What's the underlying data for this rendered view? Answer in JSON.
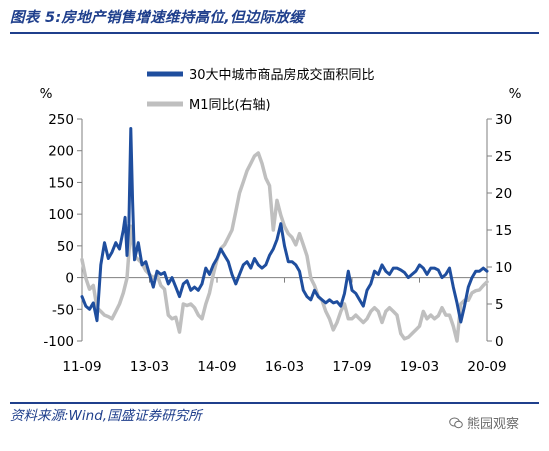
{
  "header": {
    "title": "图表 5:房地产销售增速维持高位,但边际放缓"
  },
  "footer": {
    "source": "资料来源:Wind,国盛证券研究所",
    "watermark": "熊园观察",
    "watermark_icon": "wechat-icon"
  },
  "colors": {
    "accent": "#1f3f8c",
    "series_primary": "#1f4e9e",
    "series_secondary": "#bfbfbf",
    "axis": "#7f7f7f"
  },
  "chart_data": {
    "type": "line",
    "title": "",
    "xlabel": "",
    "ylabel": "%",
    "y2label": "%",
    "ylim": [
      -100,
      250
    ],
    "y2lim": [
      0,
      30
    ],
    "yticks": [
      "250",
      "200",
      "150",
      "100",
      "50",
      "0",
      "-50",
      "-100"
    ],
    "y2ticks": [
      "30",
      "25",
      "20",
      "15",
      "10",
      "5",
      "0"
    ],
    "xticks": [
      "11-09",
      "13-03",
      "14-09",
      "16-03",
      "17-09",
      "19-03",
      "20-09"
    ],
    "xtick_positions": [
      0,
      18,
      36,
      54,
      72,
      90,
      108
    ],
    "xrange": [
      0,
      108
    ],
    "grid": false,
    "legend_position": "top",
    "series": [
      {
        "name": "30大中城市商品房成交面积同比",
        "axis": "left",
        "color": "#1f4e9e",
        "points": [
          [
            0.0,
            -30
          ],
          [
            1.0,
            -45
          ],
          [
            2.0,
            -50
          ],
          [
            3.0,
            -40
          ],
          [
            4.0,
            -68
          ],
          [
            5.0,
            20
          ],
          [
            6.0,
            55
          ],
          [
            7.0,
            30
          ],
          [
            8.0,
            40
          ],
          [
            9.0,
            55
          ],
          [
            10.0,
            45
          ],
          [
            11.0,
            75
          ],
          [
            11.5,
            95
          ],
          [
            12.0,
            35
          ],
          [
            12.5,
            85
          ],
          [
            13.0,
            235
          ],
          [
            13.5,
            120
          ],
          [
            14.0,
            28
          ],
          [
            15.0,
            55
          ],
          [
            16.0,
            20
          ],
          [
            17.0,
            25
          ],
          [
            18.0,
            5
          ],
          [
            19.0,
            -15
          ],
          [
            20.0,
            10
          ],
          [
            21.0,
            5
          ],
          [
            22.0,
            8
          ],
          [
            23.0,
            -10
          ],
          [
            24.0,
            0
          ],
          [
            25.0,
            -15
          ],
          [
            26.0,
            -30
          ],
          [
            27.0,
            -10
          ],
          [
            28.0,
            -5
          ],
          [
            29.0,
            -20
          ],
          [
            30.0,
            -15
          ],
          [
            31.0,
            -20
          ],
          [
            32.0,
            -10
          ],
          [
            33.0,
            15
          ],
          [
            34.0,
            5
          ],
          [
            35.0,
            20
          ],
          [
            36.0,
            30
          ],
          [
            37.0,
            45
          ],
          [
            38.0,
            35
          ],
          [
            39.0,
            25
          ],
          [
            40.0,
            5
          ],
          [
            41.0,
            -10
          ],
          [
            42.0,
            5
          ],
          [
            43.0,
            20
          ],
          [
            44.0,
            25
          ],
          [
            45.0,
            15
          ],
          [
            46.0,
            30
          ],
          [
            47.0,
            20
          ],
          [
            48.0,
            15
          ],
          [
            49.0,
            20
          ],
          [
            50.0,
            35
          ],
          [
            51.0,
            45
          ],
          [
            52.0,
            60
          ],
          [
            53.0,
            85
          ],
          [
            54.0,
            50
          ],
          [
            55.0,
            25
          ],
          [
            56.0,
            25
          ],
          [
            57.0,
            20
          ],
          [
            58.0,
            10
          ],
          [
            59.0,
            -20
          ],
          [
            60.0,
            -30
          ],
          [
            61.0,
            -35
          ],
          [
            62.0,
            -20
          ],
          [
            63.0,
            -30
          ],
          [
            64.0,
            -35
          ],
          [
            65.0,
            -40
          ],
          [
            66.0,
            -35
          ],
          [
            67.0,
            -40
          ],
          [
            68.0,
            -38
          ],
          [
            69.0,
            -45
          ],
          [
            70.0,
            -25
          ],
          [
            71.0,
            10
          ],
          [
            72.0,
            -20
          ],
          [
            73.0,
            -25
          ],
          [
            74.0,
            -35
          ],
          [
            75.0,
            -45
          ],
          [
            76.0,
            -20
          ],
          [
            77.0,
            -10
          ],
          [
            78.0,
            10
          ],
          [
            79.0,
            5
          ],
          [
            80.0,
            20
          ],
          [
            81.0,
            10
          ],
          [
            82.0,
            5
          ],
          [
            83.0,
            15
          ],
          [
            84.0,
            15
          ],
          [
            85.0,
            12
          ],
          [
            86.0,
            8
          ],
          [
            87.0,
            0
          ],
          [
            88.0,
            5
          ],
          [
            89.0,
            10
          ],
          [
            90.0,
            20
          ],
          [
            91.0,
            15
          ],
          [
            92.0,
            5
          ],
          [
            93.0,
            15
          ],
          [
            94.0,
            15
          ],
          [
            95.0,
            12
          ],
          [
            96.0,
            0
          ],
          [
            97.0,
            5
          ],
          [
            98.0,
            15
          ],
          [
            99.0,
            -15
          ],
          [
            100.0,
            -40
          ],
          [
            101.0,
            -70
          ],
          [
            102.0,
            -45
          ],
          [
            103.0,
            -15
          ],
          [
            104.0,
            0
          ],
          [
            105.0,
            10
          ],
          [
            106.0,
            10
          ],
          [
            107.0,
            15
          ],
          [
            108.0,
            10
          ]
        ]
      },
      {
        "name": "M1同比(右轴)",
        "axis": "right",
        "color": "#bfbfbf",
        "points": [
          [
            0.0,
            11.0
          ],
          [
            1.0,
            8.5
          ],
          [
            2.0,
            7.0
          ],
          [
            3.0,
            7.5
          ],
          [
            4.0,
            4.5
          ],
          [
            5.0,
            4.0
          ],
          [
            6.0,
            3.5
          ],
          [
            7.0,
            3.3
          ],
          [
            8.0,
            3.0
          ],
          [
            9.0,
            4.0
          ],
          [
            10.0,
            5.0
          ],
          [
            11.0,
            6.5
          ],
          [
            12.0,
            8.5
          ],
          [
            13.0,
            15.5
          ],
          [
            14.0,
            11.5
          ],
          [
            15.0,
            11.0
          ],
          [
            16.0,
            10.5
          ],
          [
            17.0,
            9.5
          ],
          [
            18.0,
            9.0
          ],
          [
            19.0,
            8.5
          ],
          [
            20.0,
            9.0
          ],
          [
            21.0,
            7.5
          ],
          [
            22.0,
            7.0
          ],
          [
            23.0,
            3.5
          ],
          [
            24.0,
            3.0
          ],
          [
            25.0,
            3.2
          ],
          [
            26.0,
            1.2
          ],
          [
            27.0,
            5.0
          ],
          [
            28.0,
            4.8
          ],
          [
            29.0,
            5.0
          ],
          [
            30.0,
            4.5
          ],
          [
            31.0,
            3.5
          ],
          [
            32.0,
            3.0
          ],
          [
            33.0,
            5.0
          ],
          [
            34.0,
            6.5
          ],
          [
            35.0,
            9.0
          ],
          [
            36.0,
            11.0
          ],
          [
            37.0,
            12.5
          ],
          [
            38.0,
            13.0
          ],
          [
            39.0,
            14.0
          ],
          [
            40.0,
            15.0
          ],
          [
            41.0,
            17.5
          ],
          [
            42.0,
            20.0
          ],
          [
            43.0,
            21.5
          ],
          [
            44.0,
            23.0
          ],
          [
            45.0,
            24.0
          ],
          [
            46.0,
            25.0
          ],
          [
            47.0,
            25.4
          ],
          [
            48.0,
            24.0
          ],
          [
            49.0,
            22.0
          ],
          [
            50.0,
            21.0
          ],
          [
            51.0,
            15.0
          ],
          [
            52.0,
            19.0
          ],
          [
            53.0,
            17.0
          ],
          [
            54.0,
            15.5
          ],
          [
            55.0,
            14.5
          ],
          [
            56.0,
            14.0
          ],
          [
            57.0,
            13.0
          ],
          [
            58.0,
            14.5
          ],
          [
            59.0,
            13.0
          ],
          [
            60.0,
            11.5
          ],
          [
            61.0,
            8.5
          ],
          [
            62.0,
            7.5
          ],
          [
            63.0,
            6.0
          ],
          [
            64.0,
            5.5
          ],
          [
            65.0,
            4.0
          ],
          [
            66.0,
            3.0
          ],
          [
            67.0,
            1.5
          ],
          [
            68.0,
            2.5
          ],
          [
            69.0,
            4.0
          ],
          [
            70.0,
            5.0
          ],
          [
            71.0,
            3.0
          ],
          [
            72.0,
            3.0
          ],
          [
            73.0,
            3.5
          ],
          [
            74.0,
            3.0
          ],
          [
            75.0,
            2.5
          ],
          [
            76.0,
            3.0
          ],
          [
            77.0,
            4.0
          ],
          [
            78.0,
            4.5
          ],
          [
            79.0,
            4.0
          ],
          [
            80.0,
            2.5
          ],
          [
            81.0,
            4.0
          ],
          [
            82.0,
            4.5
          ],
          [
            83.0,
            4.0
          ],
          [
            84.0,
            3.5
          ],
          [
            85.0,
            1.0
          ],
          [
            86.0,
            0.3
          ],
          [
            87.0,
            0.5
          ],
          [
            88.0,
            1.0
          ],
          [
            89.0,
            1.5
          ],
          [
            90.0,
            2.0
          ],
          [
            91.0,
            4.0
          ],
          [
            92.0,
            3.0
          ],
          [
            93.0,
            3.5
          ],
          [
            94.0,
            3.0
          ],
          [
            95.0,
            3.4
          ],
          [
            96.0,
            4.5
          ],
          [
            97.0,
            3.5
          ],
          [
            98.0,
            3.5
          ],
          [
            99.0,
            2.0
          ],
          [
            100.0,
            0.0
          ],
          [
            101.0,
            5.0
          ],
          [
            102.0,
            5.5
          ],
          [
            103.0,
            5.5
          ],
          [
            104.0,
            6.5
          ],
          [
            105.0,
            6.8
          ],
          [
            106.0,
            6.9
          ],
          [
            107.0,
            7.5
          ],
          [
            108.0,
            8.0
          ]
        ]
      }
    ]
  }
}
